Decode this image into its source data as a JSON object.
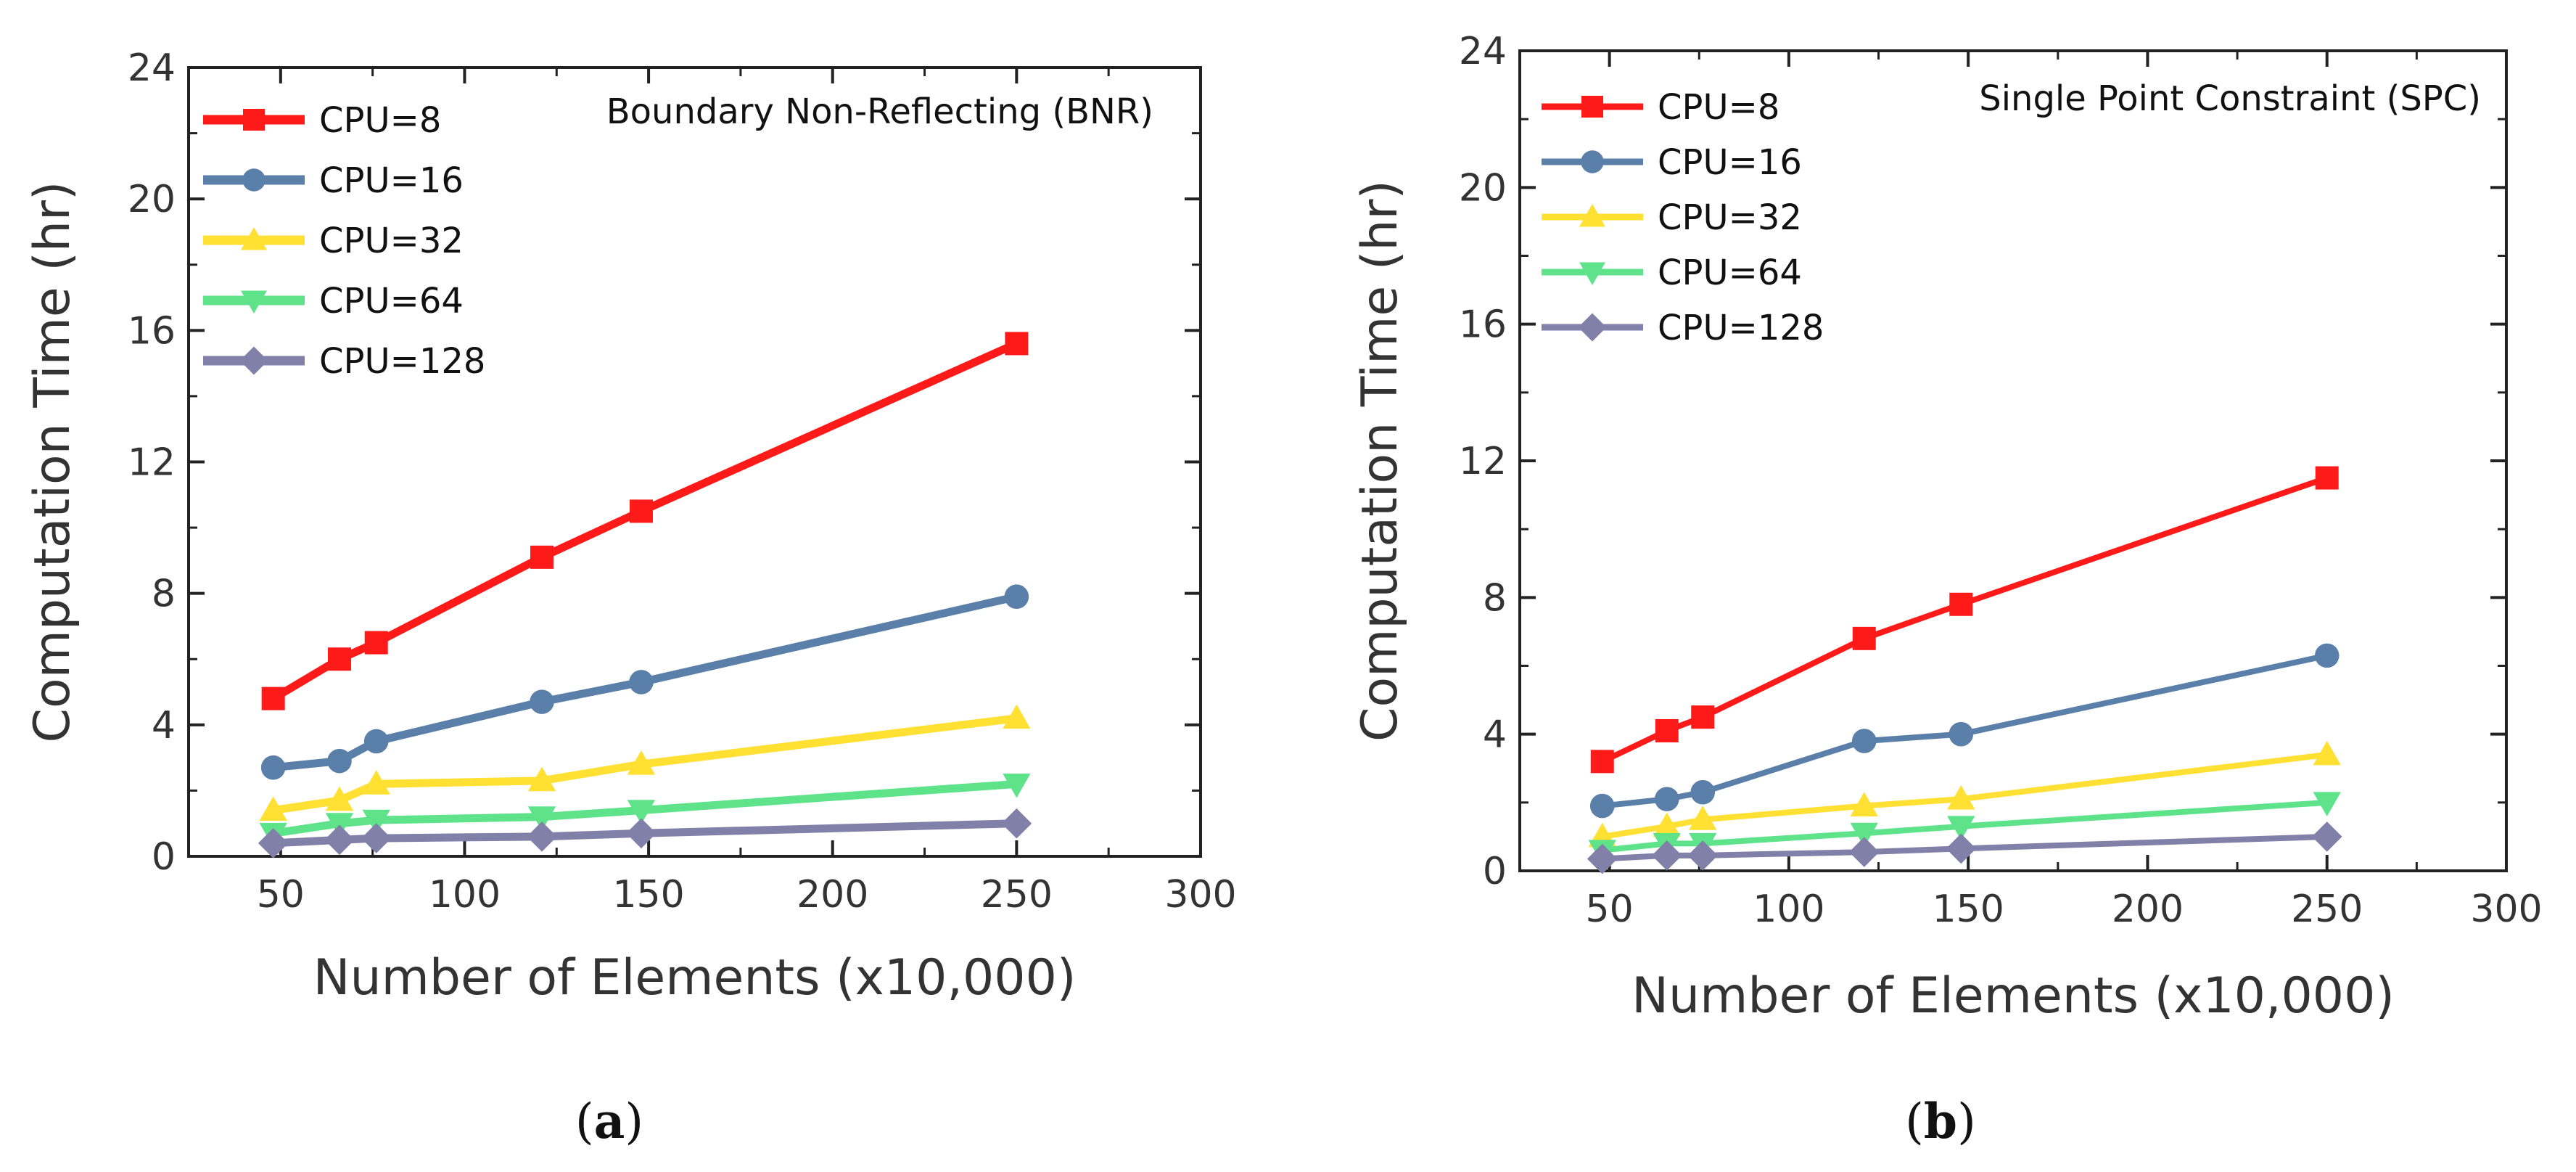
{
  "chart_data": [
    {
      "type": "line",
      "panel": "a",
      "title": "Boundary Non-Reflecting (BNR)",
      "xlabel": "Number of Elements (x10,000)",
      "ylabel": "Computation Time (hr)",
      "xlim": [
        25,
        300
      ],
      "ylim": [
        0,
        24
      ],
      "xticks": [
        50,
        100,
        150,
        200,
        250,
        300
      ],
      "yticks": [
        0,
        4,
        8,
        12,
        16,
        20,
        24
      ],
      "legend_position": "top-left",
      "x": [
        48,
        66,
        76,
        121,
        148,
        250
      ],
      "series": [
        {
          "name": "CPU=8",
          "color": "#ff1a1a",
          "marker": "square",
          "values": [
            4.8,
            6.0,
            6.5,
            9.1,
            10.5,
            15.6
          ]
        },
        {
          "name": "CPU=16",
          "color": "#5a7fa8",
          "marker": "circle",
          "values": [
            2.7,
            2.9,
            3.5,
            4.7,
            5.3,
            7.9
          ]
        },
        {
          "name": "CPU=32",
          "color": "#ffe033",
          "marker": "triangle-up",
          "values": [
            1.4,
            1.7,
            2.2,
            2.3,
            2.8,
            4.2
          ]
        },
        {
          "name": "CPU=64",
          "color": "#5fe38a",
          "marker": "triangle-down",
          "values": [
            0.7,
            1.0,
            1.1,
            1.2,
            1.4,
            2.2
          ]
        },
        {
          "name": "CPU=128",
          "color": "#8080a8",
          "marker": "diamond",
          "values": [
            0.4,
            0.5,
            0.55,
            0.6,
            0.7,
            1.0
          ]
        }
      ]
    },
    {
      "type": "line",
      "panel": "b",
      "title": "Single Point Constraint (SPC)",
      "xlabel": "Number of Elements (x10,000)",
      "ylabel": "Computation Time (hr)",
      "xlim": [
        25,
        300
      ],
      "ylim": [
        0,
        24
      ],
      "xticks": [
        50,
        100,
        150,
        200,
        250,
        300
      ],
      "yticks": [
        0,
        4,
        8,
        12,
        16,
        20,
        24
      ],
      "legend_position": "top-left",
      "x": [
        48,
        66,
        76,
        121,
        148,
        250
      ],
      "series": [
        {
          "name": "CPU=8",
          "color": "#ff1a1a",
          "marker": "square",
          "values": [
            3.2,
            4.1,
            4.5,
            6.8,
            7.8,
            11.5
          ]
        },
        {
          "name": "CPU=16",
          "color": "#5a7fa8",
          "marker": "circle",
          "values": [
            1.9,
            2.1,
            2.3,
            3.8,
            4.0,
            6.3
          ]
        },
        {
          "name": "CPU=32",
          "color": "#ffe033",
          "marker": "triangle-up",
          "values": [
            1.0,
            1.3,
            1.5,
            1.9,
            2.1,
            3.4
          ]
        },
        {
          "name": "CPU=64",
          "color": "#5fe38a",
          "marker": "triangle-down",
          "values": [
            0.6,
            0.8,
            0.8,
            1.1,
            1.3,
            2.0
          ]
        },
        {
          "name": "CPU=128",
          "color": "#8080a8",
          "marker": "diamond",
          "values": [
            0.35,
            0.45,
            0.45,
            0.55,
            0.65,
            1.0
          ]
        }
      ]
    }
  ],
  "captions": {
    "a_open": "(",
    "a_letter": "a",
    "a_close": ")",
    "b_open": "(",
    "b_letter": "b",
    "b_close": ")"
  }
}
